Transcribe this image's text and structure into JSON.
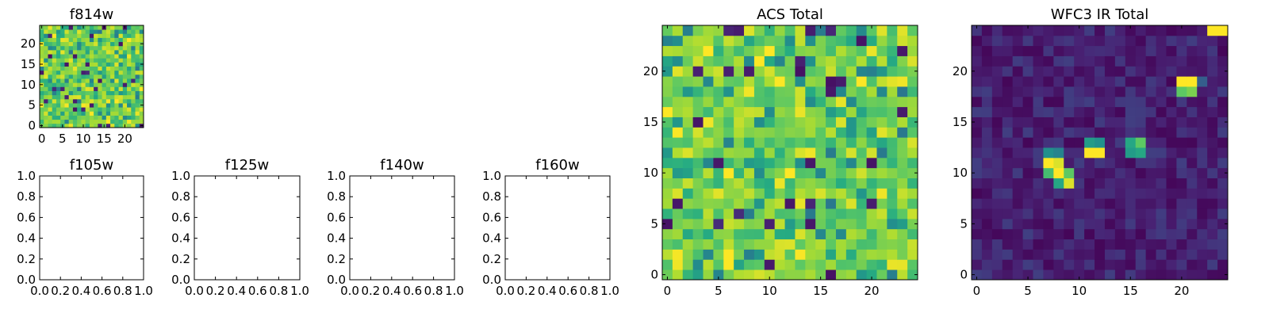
{
  "chart_data": [
    {
      "type": "heatmap",
      "title": "f814w",
      "grid_size": 25,
      "xlim": [
        -0.5,
        24.5
      ],
      "ylim": [
        -0.5,
        24.5
      ],
      "xticks": [
        0,
        5,
        10,
        15,
        20
      ],
      "yticks": [
        0,
        5,
        10,
        15,
        20
      ],
      "colormap": "viridis",
      "field": "noisy-high",
      "grid": false
    },
    {
      "type": "empty",
      "title": "f105w",
      "xlim": [
        0,
        1
      ],
      "ylim": [
        0,
        1
      ],
      "xticks": [
        "0.0",
        "0.2",
        "0.4",
        "0.6",
        "0.8",
        "1.0"
      ],
      "yticks": [
        "0.0",
        "0.2",
        "0.4",
        "0.6",
        "0.8",
        "1.0"
      ]
    },
    {
      "type": "empty",
      "title": "f125w",
      "xlim": [
        0,
        1
      ],
      "ylim": [
        0,
        1
      ],
      "xticks": [
        "0.0",
        "0.2",
        "0.4",
        "0.6",
        "0.8",
        "1.0"
      ],
      "yticks": [
        "0.0",
        "0.2",
        "0.4",
        "0.6",
        "0.8",
        "1.0"
      ]
    },
    {
      "type": "empty",
      "title": "f140w",
      "xlim": [
        0,
        1
      ],
      "ylim": [
        0,
        1
      ],
      "xticks": [
        "0.0",
        "0.2",
        "0.4",
        "0.6",
        "0.8",
        "1.0"
      ],
      "yticks": [
        "0.0",
        "0.2",
        "0.4",
        "0.6",
        "0.8",
        "1.0"
      ]
    },
    {
      "type": "empty",
      "title": "f160w",
      "xlim": [
        0,
        1
      ],
      "ylim": [
        0,
        1
      ],
      "xticks": [
        "0.0",
        "0.2",
        "0.4",
        "0.6",
        "0.8",
        "1.0"
      ],
      "yticks": [
        "0.0",
        "0.2",
        "0.4",
        "0.6",
        "0.8",
        "1.0"
      ]
    },
    {
      "type": "heatmap",
      "title": "ACS Total",
      "grid_size": 25,
      "xlim": [
        -0.5,
        24.5
      ],
      "ylim": [
        -0.5,
        24.5
      ],
      "xticks": [
        0,
        5,
        10,
        15,
        20
      ],
      "yticks": [
        0,
        5,
        10,
        15,
        20
      ],
      "colormap": "viridis",
      "field": "noisy-high",
      "grid": false
    },
    {
      "type": "heatmap",
      "title": "WFC3 IR Total",
      "grid_size": 25,
      "xlim": [
        -0.5,
        24.5
      ],
      "ylim": [
        -0.5,
        24.5
      ],
      "xticks": [
        0,
        5,
        10,
        15,
        20
      ],
      "yticks": [
        0,
        5,
        10,
        15,
        20
      ],
      "colormap": "viridis",
      "field": "dark-with-sources",
      "bright_pixels": [
        {
          "x": 23,
          "y": 24,
          "v": 1.0
        },
        {
          "x": 24,
          "y": 24,
          "v": 1.0
        },
        {
          "x": 20,
          "y": 19,
          "v": 1.0
        },
        {
          "x": 21,
          "y": 19,
          "v": 1.0
        },
        {
          "x": 22,
          "y": 19,
          "v": 0.3
        },
        {
          "x": 20,
          "y": 18,
          "v": 0.75
        },
        {
          "x": 21,
          "y": 18,
          "v": 0.8
        },
        {
          "x": 11,
          "y": 13,
          "v": 0.55
        },
        {
          "x": 12,
          "y": 13,
          "v": 0.5
        },
        {
          "x": 11,
          "y": 12,
          "v": 1.0
        },
        {
          "x": 12,
          "y": 12,
          "v": 1.0
        },
        {
          "x": 15,
          "y": 13,
          "v": 0.6
        },
        {
          "x": 16,
          "y": 13,
          "v": 0.75
        },
        {
          "x": 15,
          "y": 12,
          "v": 0.55
        },
        {
          "x": 16,
          "y": 12,
          "v": 0.6
        },
        {
          "x": 7,
          "y": 12,
          "v": 0.5
        },
        {
          "x": 8,
          "y": 12,
          "v": 0.45
        },
        {
          "x": 7,
          "y": 11,
          "v": 1.0
        },
        {
          "x": 8,
          "y": 11,
          "v": 0.95
        },
        {
          "x": 7,
          "y": 10,
          "v": 0.7
        },
        {
          "x": 8,
          "y": 10,
          "v": 1.0
        },
        {
          "x": 9,
          "y": 10,
          "v": 0.75
        },
        {
          "x": 8,
          "y": 9,
          "v": 0.6
        },
        {
          "x": 9,
          "y": 9,
          "v": 0.95
        }
      ],
      "grid": false
    }
  ]
}
